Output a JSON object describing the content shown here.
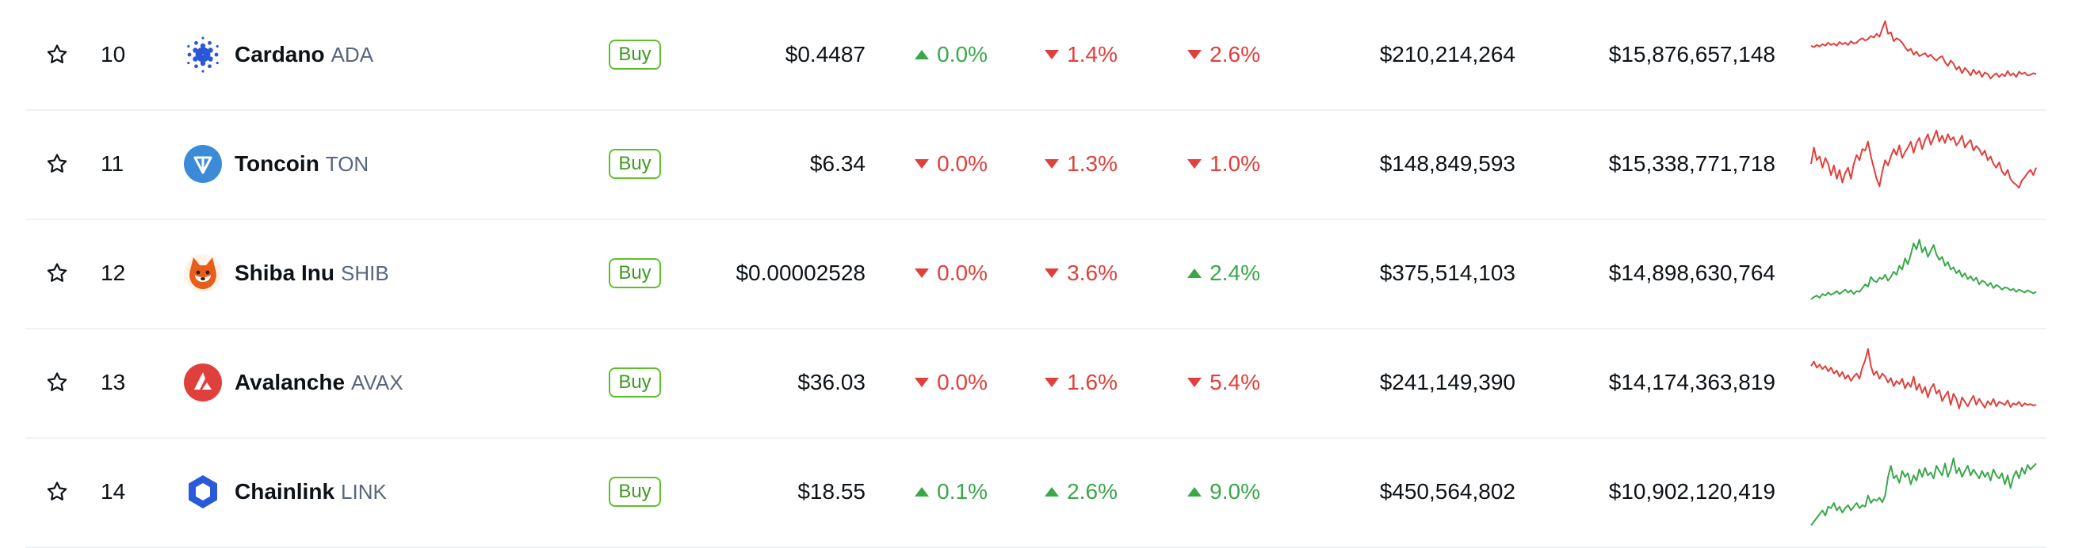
{
  "colors": {
    "up": "#3aa84a",
    "down": "#e0403b",
    "buy_border": "#5ec02a",
    "divider": "#eff2f5"
  },
  "rows": [
    {
      "rank": "10",
      "name": "Cardano",
      "symbol": "ADA",
      "icon": "cardano-icon",
      "icon_color": "#2b56d8",
      "buy_label": "Buy",
      "price": "$0.4487",
      "change_1h": {
        "value": "0.0%",
        "dir": "up"
      },
      "change_24h": {
        "value": "1.4%",
        "dir": "down"
      },
      "change_7d": {
        "value": "2.6%",
        "dir": "down"
      },
      "volume": "$210,214,264",
      "market_cap": "$15,876,657,148",
      "spark_trend": "down",
      "sparkline": [
        0.62,
        0.6,
        0.63,
        0.61,
        0.64,
        0.62,
        0.66,
        0.63,
        0.65,
        0.62,
        0.67,
        0.64,
        0.66,
        0.63,
        0.68,
        0.65,
        0.66,
        0.7,
        0.72,
        0.69,
        0.71,
        0.75,
        0.73,
        0.78,
        0.74,
        0.85,
        0.95,
        0.78,
        0.8,
        0.68,
        0.72,
        0.7,
        0.66,
        0.6,
        0.55,
        0.58,
        0.5,
        0.54,
        0.48,
        0.5,
        0.52,
        0.47,
        0.5,
        0.45,
        0.42,
        0.46,
        0.48,
        0.4,
        0.35,
        0.42,
        0.38,
        0.3,
        0.34,
        0.25,
        0.32,
        0.28,
        0.22,
        0.3,
        0.24,
        0.28,
        0.2,
        0.26,
        0.24,
        0.18,
        0.22,
        0.25,
        0.2,
        0.24,
        0.21,
        0.28,
        0.22,
        0.25,
        0.2,
        0.27,
        0.24,
        0.26,
        0.22,
        0.23,
        0.25,
        0.24
      ]
    },
    {
      "rank": "11",
      "name": "Toncoin",
      "symbol": "TON",
      "icon": "toncoin-icon",
      "icon_color": "#3b8bd8",
      "buy_label": "Buy",
      "price": "$6.34",
      "change_1h": {
        "value": "0.0%",
        "dir": "down"
      },
      "change_24h": {
        "value": "1.3%",
        "dir": "down"
      },
      "change_7d": {
        "value": "1.0%",
        "dir": "down"
      },
      "volume": "$148,849,593",
      "market_cap": "$15,338,771,718",
      "spark_trend": "down",
      "sparkline": [
        0.5,
        0.72,
        0.55,
        0.6,
        0.45,
        0.58,
        0.5,
        0.35,
        0.48,
        0.3,
        0.42,
        0.25,
        0.38,
        0.45,
        0.3,
        0.5,
        0.62,
        0.55,
        0.7,
        0.68,
        0.8,
        0.6,
        0.45,
        0.3,
        0.2,
        0.4,
        0.55,
        0.48,
        0.6,
        0.7,
        0.62,
        0.75,
        0.58,
        0.66,
        0.72,
        0.8,
        0.65,
        0.78,
        0.85,
        0.7,
        0.82,
        0.9,
        0.76,
        0.85,
        0.95,
        0.8,
        0.88,
        0.78,
        0.9,
        0.82,
        0.86,
        0.75,
        0.8,
        0.88,
        0.72,
        0.78,
        0.82,
        0.68,
        0.74,
        0.7,
        0.62,
        0.68,
        0.55,
        0.6,
        0.5,
        0.45,
        0.52,
        0.4,
        0.35,
        0.42,
        0.3,
        0.25,
        0.22,
        0.18,
        0.28,
        0.32,
        0.38,
        0.42,
        0.35,
        0.45
      ]
    },
    {
      "rank": "12",
      "name": "Shiba Inu",
      "symbol": "SHIB",
      "icon": "shiba-inu-icon",
      "icon_color": "#e85d1a",
      "buy_label": "Buy",
      "price": "$0.00002528",
      "change_1h": {
        "value": "0.0%",
        "dir": "down"
      },
      "change_24h": {
        "value": "3.6%",
        "dir": "down"
      },
      "change_7d": {
        "value": "2.4%",
        "dir": "up"
      },
      "volume": "$375,514,103",
      "market_cap": "$14,898,630,764",
      "spark_trend": "up",
      "sparkline": [
        0.15,
        0.18,
        0.2,
        0.17,
        0.22,
        0.2,
        0.24,
        0.21,
        0.23,
        0.26,
        0.22,
        0.25,
        0.28,
        0.24,
        0.27,
        0.22,
        0.26,
        0.25,
        0.3,
        0.35,
        0.32,
        0.45,
        0.4,
        0.38,
        0.44,
        0.42,
        0.48,
        0.4,
        0.45,
        0.52,
        0.48,
        0.6,
        0.55,
        0.7,
        0.62,
        0.75,
        0.9,
        0.82,
        0.95,
        0.78,
        0.85,
        0.72,
        0.8,
        0.88,
        0.75,
        0.68,
        0.72,
        0.6,
        0.65,
        0.55,
        0.58,
        0.5,
        0.54,
        0.45,
        0.5,
        0.42,
        0.46,
        0.4,
        0.44,
        0.35,
        0.4,
        0.38,
        0.33,
        0.37,
        0.3,
        0.34,
        0.32,
        0.28,
        0.31,
        0.3,
        0.27,
        0.29,
        0.25,
        0.28,
        0.26,
        0.24,
        0.27,
        0.25,
        0.23,
        0.25
      ]
    },
    {
      "rank": "13",
      "name": "Avalanche",
      "symbol": "AVAX",
      "icon": "avalanche-icon",
      "icon_color": "#e0403b",
      "buy_label": "Buy",
      "price": "$36.03",
      "change_1h": {
        "value": "0.0%",
        "dir": "down"
      },
      "change_24h": {
        "value": "1.6%",
        "dir": "down"
      },
      "change_7d": {
        "value": "5.4%",
        "dir": "down"
      },
      "volume": "$241,149,390",
      "market_cap": "$14,174,363,819",
      "spark_trend": "down",
      "sparkline": [
        0.72,
        0.78,
        0.7,
        0.74,
        0.68,
        0.72,
        0.65,
        0.7,
        0.62,
        0.66,
        0.58,
        0.64,
        0.55,
        0.6,
        0.52,
        0.58,
        0.62,
        0.55,
        0.7,
        0.8,
        0.95,
        0.72,
        0.6,
        0.65,
        0.55,
        0.62,
        0.58,
        0.5,
        0.56,
        0.45,
        0.52,
        0.48,
        0.55,
        0.42,
        0.5,
        0.44,
        0.58,
        0.4,
        0.48,
        0.36,
        0.44,
        0.3,
        0.42,
        0.48,
        0.35,
        0.4,
        0.25,
        0.32,
        0.38,
        0.2,
        0.35,
        0.28,
        0.15,
        0.3,
        0.24,
        0.18,
        0.26,
        0.32,
        0.2,
        0.28,
        0.22,
        0.16,
        0.25,
        0.2,
        0.28,
        0.18,
        0.24,
        0.22,
        0.2,
        0.26,
        0.17,
        0.22,
        0.2,
        0.24,
        0.18,
        0.22,
        0.2,
        0.21,
        0.19,
        0.2
      ]
    },
    {
      "rank": "14",
      "name": "Chainlink",
      "symbol": "LINK",
      "icon": "chainlink-icon",
      "icon_color": "#2a5ada",
      "buy_label": "Buy",
      "price": "$18.55",
      "change_1h": {
        "value": "0.1%",
        "dir": "up"
      },
      "change_24h": {
        "value": "2.6%",
        "dir": "up"
      },
      "change_7d": {
        "value": "9.0%",
        "dir": "up"
      },
      "volume": "$450,564,802",
      "market_cap": "$10,902,120,419",
      "spark_trend": "up",
      "sparkline": [
        0.05,
        0.1,
        0.15,
        0.2,
        0.25,
        0.18,
        0.3,
        0.28,
        0.35,
        0.25,
        0.3,
        0.22,
        0.28,
        0.32,
        0.25,
        0.3,
        0.35,
        0.28,
        0.32,
        0.3,
        0.45,
        0.35,
        0.4,
        0.38,
        0.42,
        0.36,
        0.45,
        0.7,
        0.85,
        0.68,
        0.72,
        0.62,
        0.78,
        0.7,
        0.75,
        0.6,
        0.72,
        0.65,
        0.8,
        0.7,
        0.82,
        0.72,
        0.76,
        0.68,
        0.85,
        0.78,
        0.72,
        0.88,
        0.7,
        0.8,
        0.95,
        0.75,
        0.82,
        0.7,
        0.78,
        0.85,
        0.72,
        0.8,
        0.74,
        0.68,
        0.78,
        0.7,
        0.76,
        0.65,
        0.8,
        0.72,
        0.68,
        0.75,
        0.6,
        0.72,
        0.55,
        0.7,
        0.78,
        0.68,
        0.82,
        0.74,
        0.86,
        0.8,
        0.84,
        0.88
      ]
    }
  ]
}
